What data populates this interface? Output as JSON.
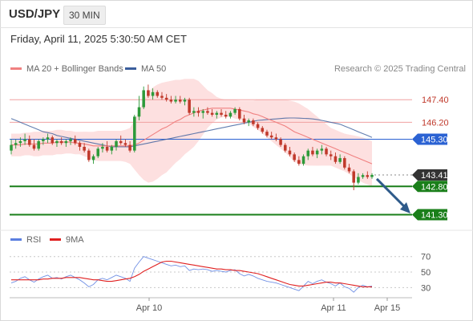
{
  "header": {
    "symbol": "USD/JPY",
    "timeframe": "30 MIN",
    "datetime": "Friday, April 11, 2025 5:30:50 AM CET"
  },
  "legend": {
    "ma20_label": "MA 20 + Bollinger Bands",
    "ma20_color": "#f08080",
    "ma50_label": "MA 50",
    "ma50_color": "#3b5e9c",
    "credit": "Research © 2025 Trading Central"
  },
  "rsi_legend": {
    "rsi_label": "RSI",
    "rsi_color": "#5b7fe0",
    "ma9_label": "9MA",
    "ma9_color": "#e02020"
  },
  "colors": {
    "bull": "#2d9a3a",
    "bear": "#c0392b",
    "resistance": "#c0392b",
    "pivot": "#2b62d3",
    "support": "#1a7f1a",
    "arrow": "#2e5a8a",
    "band": "#fde0e0"
  },
  "chart_data": [
    {
      "type": "candlestick",
      "title": "USD/JPY",
      "timeframe": "30 MIN",
      "x_ticks": [
        "Apr 10",
        "Apr 11",
        "Apr 15"
      ],
      "y_range": [
        140.6,
        148.6
      ],
      "price_levels": [
        {
          "value": 147.4,
          "label": "147.40",
          "kind": "resistance"
        },
        {
          "value": 146.2,
          "label": "146.20",
          "kind": "resistance"
        },
        {
          "value": 145.3,
          "label": "145.30",
          "kind": "pivot"
        },
        {
          "value": 143.41,
          "label": "143.41",
          "kind": "last"
        },
        {
          "value": 142.8,
          "label": "142.80",
          "kind": "support"
        },
        {
          "value": 141.3,
          "label": "141.30",
          "kind": "support"
        }
      ],
      "candles": [
        [
          144.7,
          145.3,
          144.5,
          145.0
        ],
        [
          145.0,
          145.3,
          144.8,
          145.1
        ],
        [
          145.1,
          145.4,
          144.9,
          145.2
        ],
        [
          145.2,
          145.6,
          145.0,
          145.3
        ],
        [
          145.3,
          145.5,
          144.9,
          145.0
        ],
        [
          145.0,
          145.3,
          144.7,
          144.8
        ],
        [
          144.8,
          145.3,
          144.7,
          145.2
        ],
        [
          145.2,
          145.4,
          145.0,
          145.3
        ],
        [
          145.3,
          145.6,
          145.1,
          145.4
        ],
        [
          145.4,
          145.5,
          145.0,
          145.1
        ],
        [
          145.1,
          145.3,
          144.9,
          145.2
        ],
        [
          145.2,
          145.4,
          145.0,
          145.1
        ],
        [
          145.1,
          145.3,
          144.9,
          145.2
        ],
        [
          145.2,
          145.4,
          145.0,
          145.3
        ],
        [
          145.3,
          145.5,
          145.0,
          145.1
        ],
        [
          145.1,
          145.2,
          144.7,
          144.9
        ],
        [
          144.9,
          145.1,
          144.6,
          144.7
        ],
        [
          144.7,
          144.8,
          144.1,
          144.2
        ],
        [
          144.2,
          144.5,
          144.0,
          144.4
        ],
        [
          144.4,
          144.9,
          144.3,
          144.8
        ],
        [
          144.8,
          145.1,
          144.6,
          144.9
        ],
        [
          144.9,
          145.2,
          144.6,
          144.7
        ],
        [
          144.7,
          145.0,
          144.5,
          144.9
        ],
        [
          144.9,
          145.3,
          144.7,
          145.2
        ],
        [
          145.2,
          145.5,
          145.0,
          145.1
        ],
        [
          145.1,
          145.3,
          144.9,
          145.0
        ],
        [
          145.0,
          145.2,
          144.6,
          144.7
        ],
        [
          144.7,
          146.6,
          144.6,
          146.5
        ],
        [
          146.5,
          147.6,
          146.3,
          147.0
        ],
        [
          147.0,
          148.1,
          146.9,
          147.9
        ],
        [
          147.9,
          148.2,
          147.5,
          147.6
        ],
        [
          147.6,
          148.0,
          147.4,
          147.8
        ],
        [
          147.8,
          147.9,
          147.5,
          147.6
        ],
        [
          147.6,
          147.8,
          147.4,
          147.5
        ],
        [
          147.5,
          147.7,
          147.3,
          147.4
        ],
        [
          147.4,
          147.6,
          147.2,
          147.3
        ],
        [
          147.3,
          147.6,
          147.2,
          147.4
        ],
        [
          147.4,
          147.6,
          147.2,
          147.3
        ],
        [
          147.3,
          147.5,
          147.1,
          147.4
        ],
        [
          147.4,
          147.5,
          146.6,
          146.7
        ],
        [
          146.7,
          147.0,
          146.5,
          146.8
        ],
        [
          146.8,
          147.0,
          146.5,
          146.7
        ],
        [
          146.7,
          146.9,
          146.4,
          146.8
        ],
        [
          146.8,
          147.0,
          146.6,
          146.7
        ],
        [
          146.7,
          146.9,
          146.5,
          146.6
        ],
        [
          146.6,
          146.8,
          146.4,
          146.7
        ],
        [
          146.7,
          146.9,
          146.5,
          146.6
        ],
        [
          146.6,
          146.8,
          146.4,
          146.5
        ],
        [
          146.5,
          146.8,
          146.4,
          146.7
        ],
        [
          146.7,
          147.0,
          146.6,
          146.9
        ],
        [
          146.9,
          147.0,
          146.3,
          146.4
        ],
        [
          146.4,
          146.6,
          146.1,
          146.2
        ],
        [
          146.2,
          146.4,
          146.0,
          146.3
        ],
        [
          146.3,
          146.4,
          146.0,
          146.1
        ],
        [
          146.1,
          146.2,
          145.8,
          145.9
        ],
        [
          145.9,
          146.0,
          145.6,
          145.7
        ],
        [
          145.7,
          145.8,
          145.4,
          145.5
        ],
        [
          145.5,
          145.7,
          145.3,
          145.4
        ],
        [
          145.4,
          145.6,
          145.2,
          145.3
        ],
        [
          145.3,
          145.4,
          144.9,
          145.0
        ],
        [
          145.0,
          145.1,
          144.6,
          144.7
        ],
        [
          144.7,
          144.9,
          144.4,
          144.5
        ],
        [
          144.5,
          144.6,
          144.1,
          144.2
        ],
        [
          144.2,
          144.4,
          143.9,
          144.0
        ],
        [
          144.0,
          144.5,
          143.9,
          144.4
        ],
        [
          144.4,
          144.8,
          144.2,
          144.7
        ],
        [
          144.7,
          144.9,
          144.4,
          144.5
        ],
        [
          144.5,
          144.8,
          144.3,
          144.7
        ],
        [
          144.7,
          145.0,
          144.5,
          144.8
        ],
        [
          144.8,
          144.9,
          144.4,
          144.5
        ],
        [
          144.5,
          144.7,
          144.2,
          144.4
        ],
        [
          144.4,
          144.6,
          144.0,
          144.1
        ],
        [
          144.1,
          144.5,
          144.0,
          144.3
        ],
        [
          144.3,
          144.4,
          143.7,
          143.8
        ],
        [
          143.8,
          144.0,
          143.5,
          143.6
        ],
        [
          143.6,
          143.7,
          142.6,
          143.0
        ],
        [
          143.0,
          143.5,
          142.9,
          143.3
        ],
        [
          143.3,
          143.5,
          143.2,
          143.4
        ],
        [
          143.4,
          143.6,
          143.2,
          143.3
        ],
        [
          143.3,
          143.5,
          143.2,
          143.41
        ]
      ],
      "ma20": [
        145.0,
        145.0,
        145.0,
        145.05,
        145.05,
        145.05,
        145.05,
        145.1,
        145.1,
        145.1,
        145.15,
        145.15,
        145.15,
        145.15,
        145.1,
        145.1,
        145.05,
        145.0,
        144.95,
        144.95,
        144.95,
        144.95,
        144.95,
        144.95,
        144.95,
        144.95,
        144.95,
        145.0,
        145.1,
        145.25,
        145.4,
        145.55,
        145.7,
        145.85,
        145.95,
        146.1,
        146.25,
        146.35,
        146.5,
        146.6,
        146.7,
        146.8,
        146.85,
        146.9,
        146.95,
        146.95,
        146.95,
        146.95,
        146.95,
        146.9,
        146.85,
        146.8,
        146.75,
        146.65,
        146.6,
        146.5,
        146.4,
        146.3,
        146.2,
        146.1,
        146.0,
        145.85,
        145.7,
        145.6,
        145.5,
        145.4,
        145.3,
        145.2,
        145.1,
        145.0,
        144.9,
        144.8,
        144.7,
        144.6,
        144.5,
        144.4,
        144.3,
        144.2,
        144.1,
        144.0
      ],
      "ma50": [
        146.4,
        146.3,
        146.2,
        146.1,
        146.0,
        145.9,
        145.8,
        145.7,
        145.65,
        145.6,
        145.5,
        145.45,
        145.4,
        145.35,
        145.3,
        145.25,
        145.2,
        145.15,
        145.1,
        145.05,
        145.0,
        144.95,
        144.9,
        144.9,
        144.9,
        144.9,
        144.9,
        144.95,
        145.0,
        145.05,
        145.1,
        145.15,
        145.2,
        145.25,
        145.3,
        145.35,
        145.4,
        145.45,
        145.5,
        145.55,
        145.6,
        145.65,
        145.7,
        145.75,
        145.8,
        145.85,
        145.9,
        145.95,
        146.0,
        146.05,
        146.1,
        146.15,
        146.2,
        146.25,
        146.3,
        146.32,
        146.34,
        146.36,
        146.38,
        146.4,
        146.42,
        146.43,
        146.43,
        146.42,
        146.41,
        146.4,
        146.38,
        146.35,
        146.3,
        146.25,
        146.2,
        146.15,
        146.1,
        146.0,
        145.9,
        145.8,
        145.7,
        145.6,
        145.5,
        145.4
      ],
      "band_width": [
        0.6,
        0.6,
        0.6,
        0.6,
        0.6,
        0.65,
        0.65,
        0.65,
        0.65,
        0.65,
        0.65,
        0.65,
        0.6,
        0.6,
        0.6,
        0.6,
        0.65,
        0.7,
        0.75,
        0.8,
        0.8,
        0.8,
        0.8,
        0.8,
        0.8,
        0.85,
        0.95,
        1.3,
        1.7,
        2.1,
        2.4,
        2.5,
        2.5,
        2.45,
        2.4,
        2.3,
        2.2,
        2.1,
        2.0,
        1.9,
        1.8,
        1.6,
        1.3,
        1.0,
        0.8,
        0.6,
        0.5,
        0.45,
        0.45,
        0.5,
        0.5,
        0.55,
        0.6,
        0.7,
        0.8,
        0.9,
        1.0,
        1.1,
        1.2,
        1.3,
        1.4,
        1.5,
        1.6,
        1.6,
        1.55,
        1.5,
        1.4,
        1.3,
        1.2,
        1.1,
        1.0,
        1.0,
        1.0,
        1.0,
        1.05,
        1.1,
        1.15,
        1.2,
        1.2,
        1.2
      ]
    },
    {
      "type": "line",
      "title": "RSI",
      "x_ticks": [
        "Apr 10",
        "Apr 11",
        "Apr 15"
      ],
      "y_range": [
        20,
        78
      ],
      "y_ticks": [
        70,
        50,
        30
      ],
      "series": [
        {
          "name": "RSI",
          "values": [
            36,
            38,
            42,
            44,
            40,
            37,
            41,
            44,
            46,
            42,
            43,
            41,
            44,
            46,
            43,
            40,
            36,
            31,
            34,
            40,
            42,
            40,
            43,
            46,
            44,
            42,
            38,
            55,
            63,
            70,
            68,
            66,
            64,
            62,
            60,
            58,
            59,
            57,
            58,
            52,
            54,
            53,
            54,
            53,
            51,
            52,
            51,
            50,
            52,
            53,
            48,
            45,
            47,
            45,
            42,
            40,
            38,
            37,
            36,
            34,
            32,
            30,
            28,
            26,
            32,
            38,
            35,
            38,
            40,
            37,
            35,
            32,
            36,
            31,
            29,
            24,
            30,
            33,
            31,
            32
          ]
        },
        {
          "name": "9MA",
          "values": [
            40,
            40,
            40,
            40,
            40,
            40,
            40,
            41,
            41,
            42,
            42,
            42,
            43,
            43,
            43,
            43,
            42,
            41,
            40,
            40,
            39,
            38,
            38,
            39,
            40,
            41,
            42,
            44,
            47,
            51,
            54,
            57,
            60,
            63,
            64,
            64,
            63,
            62,
            61,
            60,
            59,
            58,
            57,
            56,
            55,
            54,
            54,
            53,
            53,
            52,
            52,
            51,
            50,
            49,
            48,
            46,
            44,
            42,
            40,
            38,
            36,
            34,
            33,
            32,
            32,
            33,
            34,
            35,
            36,
            37,
            37,
            36,
            36,
            35,
            34,
            33,
            32,
            31,
            31,
            31
          ]
        }
      ]
    }
  ]
}
